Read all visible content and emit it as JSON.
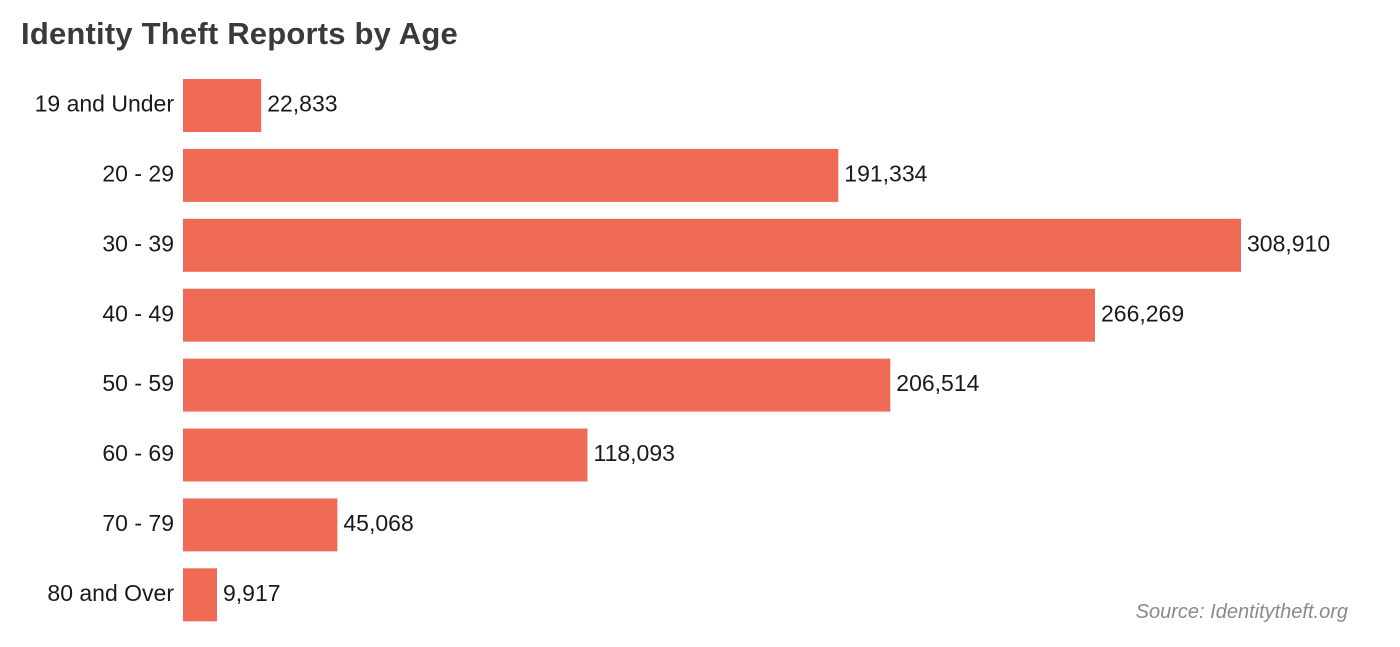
{
  "chart_data": {
    "type": "bar",
    "orientation": "horizontal",
    "title": "Identity Theft Reports by Age",
    "categories": [
      "19 and Under",
      "20 - 29",
      "30 - 39",
      "40 - 49",
      "50 - 59",
      "60 - 69",
      "70 - 79",
      "80 and Over"
    ],
    "values": [
      22833,
      191334,
      308910,
      266269,
      206514,
      118093,
      45068,
      9917
    ],
    "value_labels": [
      "22,833",
      "191,334",
      "308,910",
      "266,269",
      "206,514",
      "118,093",
      "45,068",
      "9,917"
    ],
    "xlim": [
      0,
      308910
    ],
    "grid": false,
    "legend": "none",
    "bar_color": "#f06b55",
    "source": "Source: Identitytheft.org"
  }
}
